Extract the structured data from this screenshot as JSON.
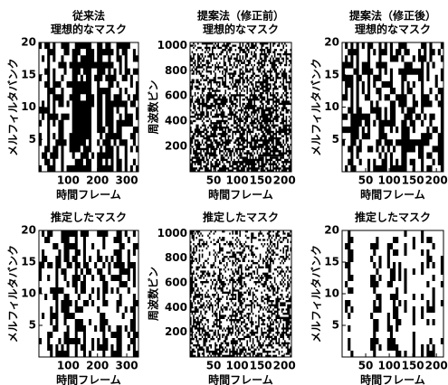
{
  "chart_data": [
    {
      "type": "heatmap",
      "title": [
        "従来法",
        "理想的なマスク"
      ],
      "xlabel": "時間フレーム",
      "ylabel": "メルフィルタバンク",
      "xlim": [
        0,
        340
      ],
      "xticks": [
        100,
        200,
        300
      ],
      "ylim": [
        0,
        20
      ],
      "yticks": [
        5,
        10,
        15,
        20
      ]
    },
    {
      "type": "heatmap",
      "title": [
        "提案法（修正前）",
        "理想的なマスク"
      ],
      "xlabel": "時間フレーム",
      "ylabel": "周波数ビン",
      "xlim": [
        0,
        215
      ],
      "xticks": [
        50,
        100,
        150,
        200
      ],
      "ylim": [
        0,
        1024
      ],
      "yticks": [
        200,
        400,
        600,
        800,
        1000
      ]
    },
    {
      "type": "heatmap",
      "title": [
        "提案法（修正後）",
        "理想的なマスク"
      ],
      "xlabel": "時間フレーム",
      "ylabel": "メルフィルタバンク",
      "xlim": [
        0,
        215
      ],
      "xticks": [
        50,
        100,
        150,
        200
      ],
      "ylim": [
        0,
        20
      ],
      "yticks": [
        5,
        10,
        15,
        20
      ]
    },
    {
      "type": "heatmap",
      "title": [
        "推定したマスク"
      ],
      "xlabel": "時間フレーム",
      "ylabel": "メルフィルタバンク",
      "xlim": [
        0,
        340
      ],
      "xticks": [
        100,
        200,
        300
      ],
      "ylim": [
        0,
        20
      ],
      "yticks": [
        5,
        10,
        15,
        20
      ]
    },
    {
      "type": "heatmap",
      "title": [
        "推定したマスク"
      ],
      "xlabel": "時間フレーム",
      "ylabel": "周波数ビン",
      "xlim": [
        0,
        215
      ],
      "xticks": [
        50,
        100,
        150,
        200
      ],
      "ylim": [
        0,
        1024
      ],
      "yticks": [
        200,
        400,
        600,
        800,
        1000
      ]
    },
    {
      "type": "heatmap",
      "title": [
        "推定したマスク"
      ],
      "xlabel": "時間フレーム",
      "ylabel": "メルフィルタバンク",
      "xlim": [
        0,
        215
      ],
      "xticks": [
        50,
        100,
        150,
        200
      ],
      "ylim": [
        0,
        20
      ],
      "yticks": [
        5,
        10,
        15,
        20
      ]
    }
  ]
}
